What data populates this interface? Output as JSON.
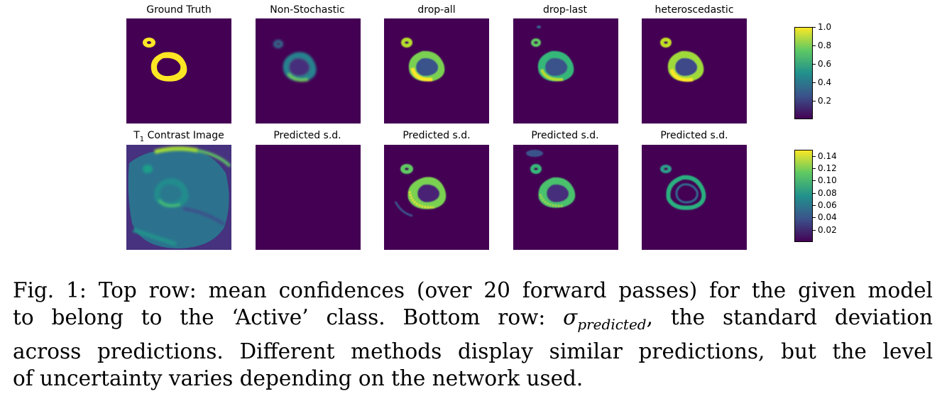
{
  "figure": {
    "top_titles": [
      "Ground Truth",
      "Non-Stochastic",
      "drop-all",
      "drop-last",
      "heteroscedastic"
    ],
    "bottom_titles": {
      "first_prefix": "T",
      "first_sub": "1",
      "first_suffix": " Contrast Image",
      "others": [
        "Predicted s.d.",
        "Predicted s.d.",
        "Predicted s.d.",
        "Predicted s.d."
      ]
    },
    "colorbar_top": {
      "ticks": [
        "1.0",
        "0.8",
        "0.6",
        "0.4",
        "0.2"
      ],
      "values": [
        1.0,
        0.8,
        0.6,
        0.4,
        0.2
      ],
      "min": 0.0,
      "max": 1.0
    },
    "colorbar_bottom": {
      "ticks": [
        "0.14",
        "0.12",
        "0.10",
        "0.08",
        "0.06",
        "0.04",
        "0.02"
      ],
      "values": [
        0.14,
        0.12,
        0.1,
        0.08,
        0.06,
        0.04,
        0.02
      ],
      "min": 0.0,
      "max": 0.15
    },
    "colormap": [
      "#440154",
      "#3b528b",
      "#21918c",
      "#5ec962",
      "#fde725"
    ]
  },
  "caption": {
    "line1": "Fig. 1: Top row: mean confidences (over 20 forward passes) for the given model",
    "line2_a": "to belong to the ‘Active’ class. Bottom row: ",
    "sigma": "σ",
    "sigma_sub": "predicted",
    "line2_b": ", the standard deviation",
    "line3": "across predictions. Different methods display similar predictions, but the level",
    "line4": "of uncertainty varies depending on the network used."
  }
}
